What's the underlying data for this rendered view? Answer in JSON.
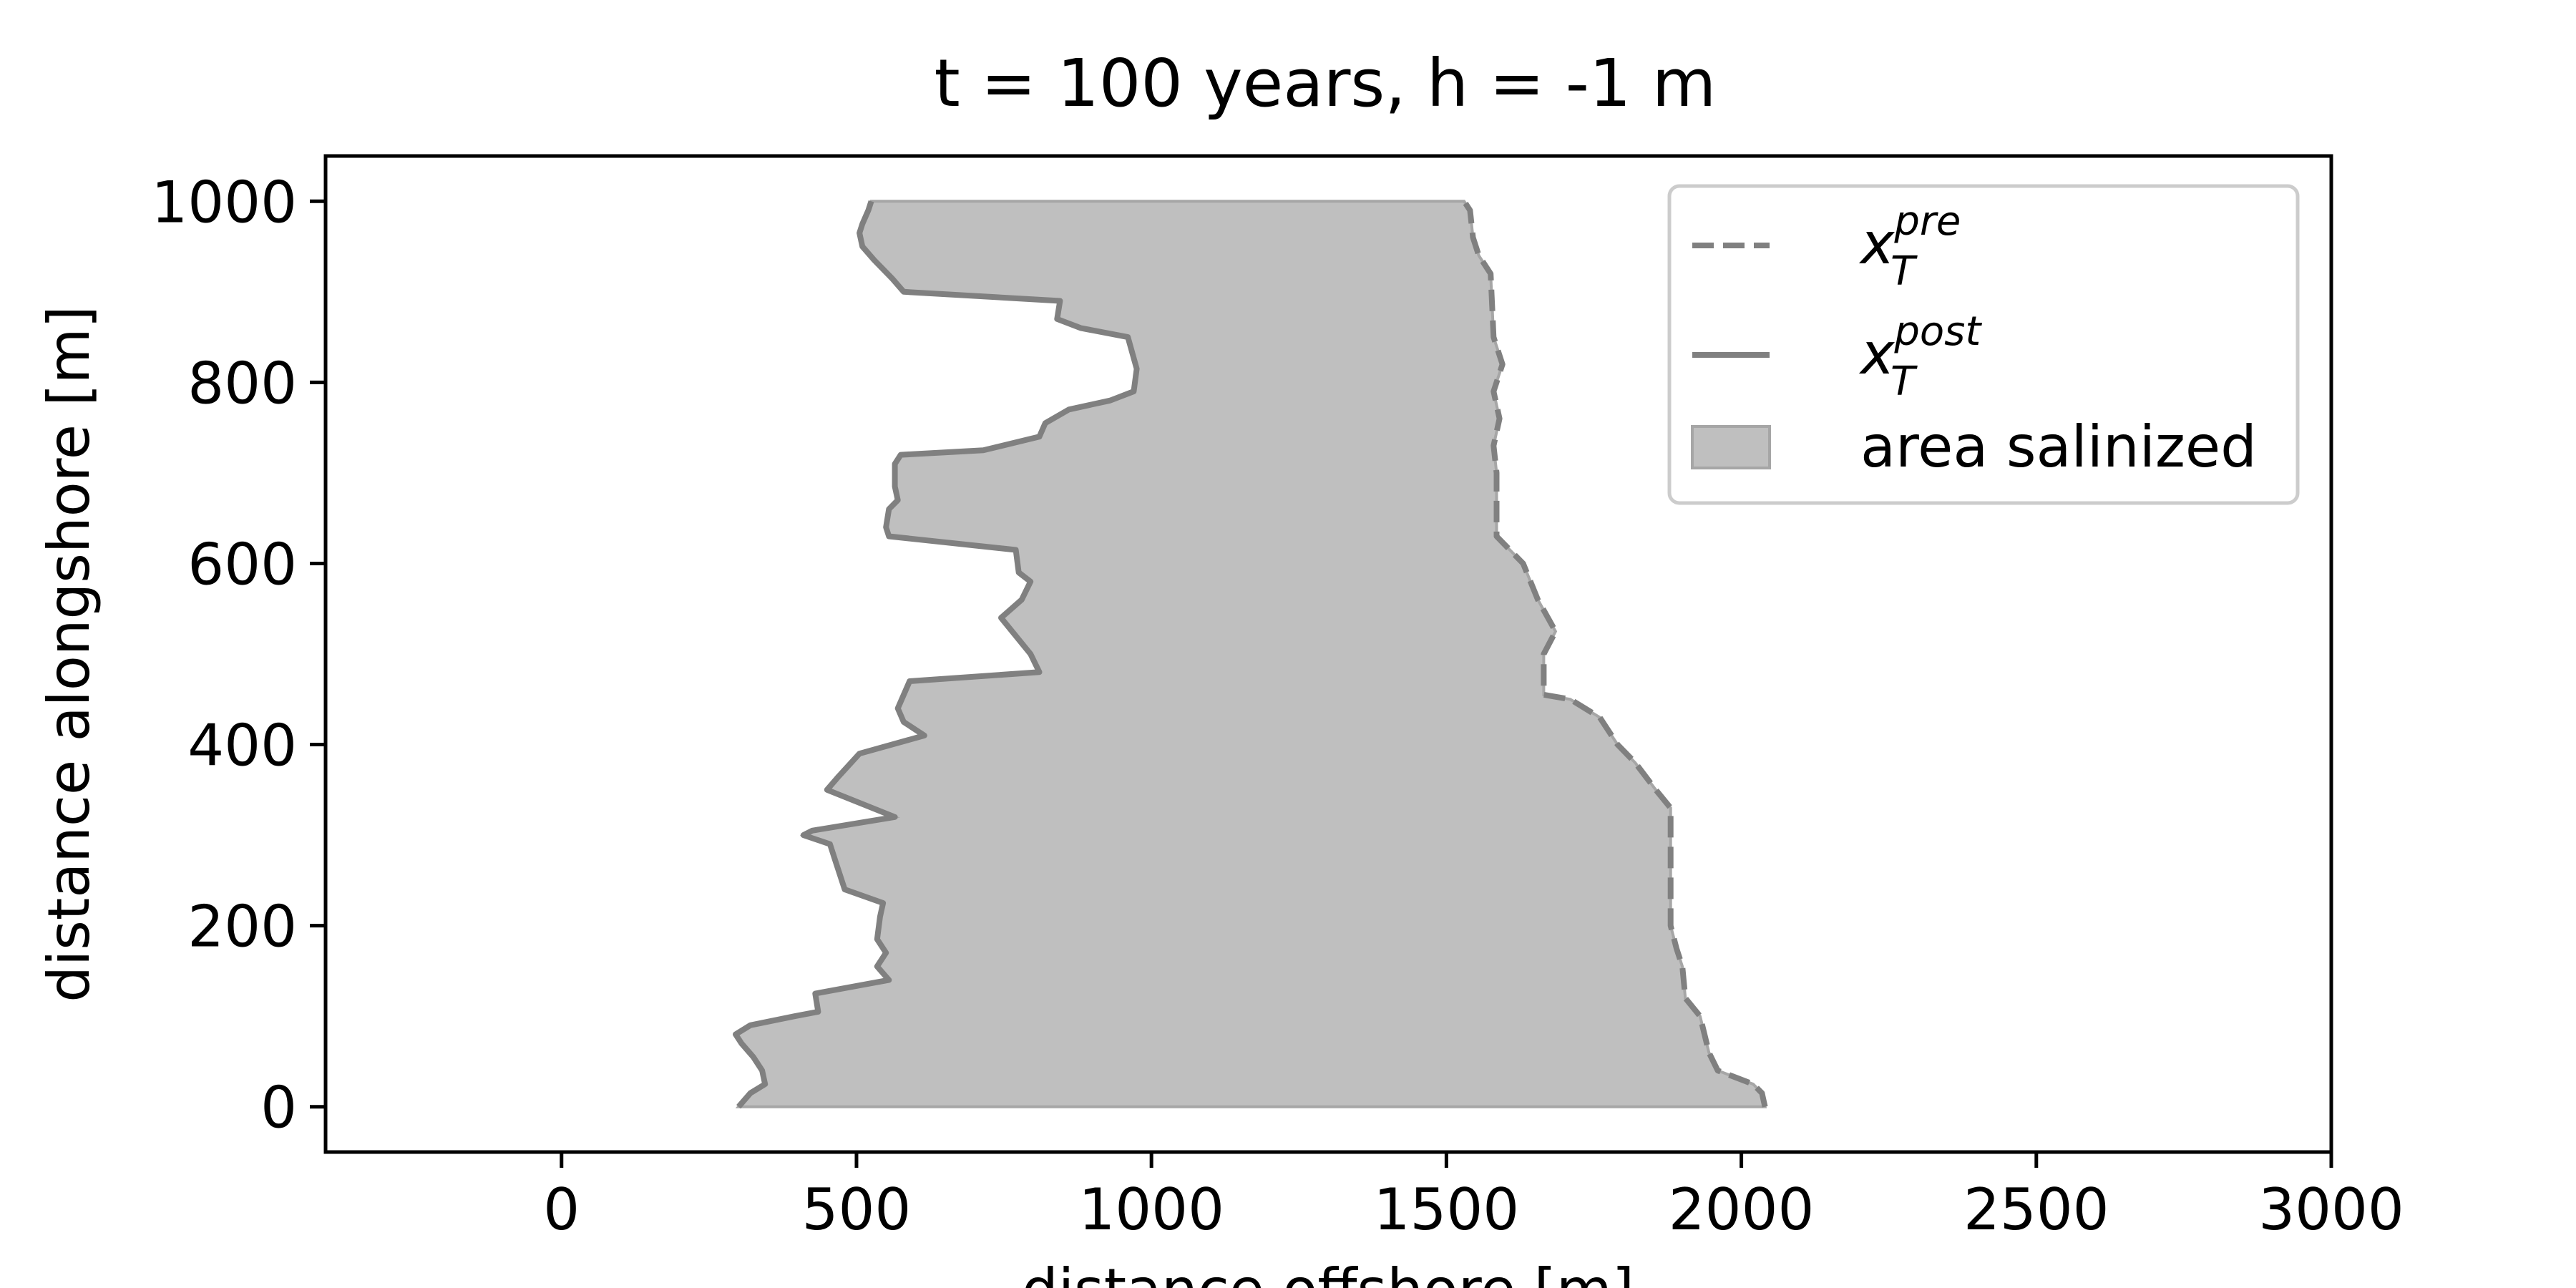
{
  "chart_data": {
    "type": "area",
    "title": "t = 100 years, h = -1 m",
    "xlabel": "distance offshore [m]",
    "ylabel": "distance alongshore [m]",
    "xlim": [
      -400,
      3000
    ],
    "ylim": [
      -50,
      1050
    ],
    "xticks": [
      0,
      500,
      1000,
      1500,
      2000,
      2500,
      3000
    ],
    "yticks": [
      0,
      200,
      400,
      600,
      800,
      1000
    ],
    "grid": false,
    "legend_position": "top-right",
    "colors": {
      "line": "#808080",
      "fill": "#bfbfbf",
      "axes": "#000000"
    },
    "legend": [
      {
        "key": "pre",
        "base": "x",
        "sub": "T",
        "sup": "pre",
        "style": "dashed"
      },
      {
        "key": "post",
        "base": "x",
        "sub": "T",
        "sup": "post",
        "style": "solid"
      },
      {
        "key": "area",
        "label": "area salinized",
        "style": "fill"
      }
    ],
    "series": [
      {
        "name": "x_T^pre",
        "style": "dashed",
        "points": [
          [
            2040,
            0
          ],
          [
            2035,
            15
          ],
          [
            2020,
            25
          ],
          [
            1960,
            40
          ],
          [
            1945,
            60
          ],
          [
            1930,
            100
          ],
          [
            1905,
            120
          ],
          [
            1900,
            155
          ],
          [
            1890,
            175
          ],
          [
            1880,
            200
          ],
          [
            1880,
            330
          ],
          [
            1855,
            350
          ],
          [
            1820,
            380
          ],
          [
            1790,
            400
          ],
          [
            1760,
            430
          ],
          [
            1710,
            450
          ],
          [
            1665,
            455
          ],
          [
            1665,
            500
          ],
          [
            1685,
            525
          ],
          [
            1655,
            560
          ],
          [
            1630,
            600
          ],
          [
            1585,
            630
          ],
          [
            1585,
            700
          ],
          [
            1580,
            730
          ],
          [
            1590,
            760
          ],
          [
            1580,
            790
          ],
          [
            1595,
            820
          ],
          [
            1580,
            850
          ],
          [
            1575,
            920
          ],
          [
            1555,
            940
          ],
          [
            1545,
            960
          ],
          [
            1540,
            990
          ],
          [
            1530,
            1000
          ]
        ]
      },
      {
        "name": "x_T^post",
        "style": "solid",
        "points": [
          [
            300,
            0
          ],
          [
            320,
            15
          ],
          [
            345,
            25
          ],
          [
            340,
            40
          ],
          [
            325,
            55
          ],
          [
            305,
            70
          ],
          [
            295,
            80
          ],
          [
            320,
            90
          ],
          [
            395,
            100
          ],
          [
            435,
            105
          ],
          [
            430,
            125
          ],
          [
            555,
            140
          ],
          [
            535,
            155
          ],
          [
            550,
            170
          ],
          [
            535,
            185
          ],
          [
            540,
            210
          ],
          [
            545,
            225
          ],
          [
            480,
            240
          ],
          [
            465,
            270
          ],
          [
            460,
            280
          ],
          [
            455,
            290
          ],
          [
            410,
            300
          ],
          [
            425,
            305
          ],
          [
            565,
            320
          ],
          [
            450,
            350
          ],
          [
            470,
            365
          ],
          [
            505,
            390
          ],
          [
            615,
            410
          ],
          [
            580,
            425
          ],
          [
            570,
            440
          ],
          [
            590,
            470
          ],
          [
            810,
            480
          ],
          [
            795,
            500
          ],
          [
            745,
            540
          ],
          [
            780,
            560
          ],
          [
            795,
            580
          ],
          [
            775,
            590
          ],
          [
            770,
            615
          ],
          [
            555,
            630
          ],
          [
            550,
            640
          ],
          [
            555,
            660
          ],
          [
            570,
            670
          ],
          [
            565,
            685
          ],
          [
            565,
            705
          ],
          [
            565,
            710
          ],
          [
            575,
            720
          ],
          [
            715,
            725
          ],
          [
            810,
            740
          ],
          [
            820,
            755
          ],
          [
            860,
            770
          ],
          [
            930,
            780
          ],
          [
            970,
            790
          ],
          [
            975,
            815
          ],
          [
            960,
            850
          ],
          [
            880,
            860
          ],
          [
            840,
            870
          ],
          [
            845,
            890
          ],
          [
            580,
            900
          ],
          [
            560,
            915
          ],
          [
            530,
            935
          ],
          [
            510,
            950
          ],
          [
            505,
            965
          ],
          [
            510,
            975
          ],
          [
            520,
            990
          ],
          [
            525,
            1000
          ]
        ]
      }
    ]
  }
}
